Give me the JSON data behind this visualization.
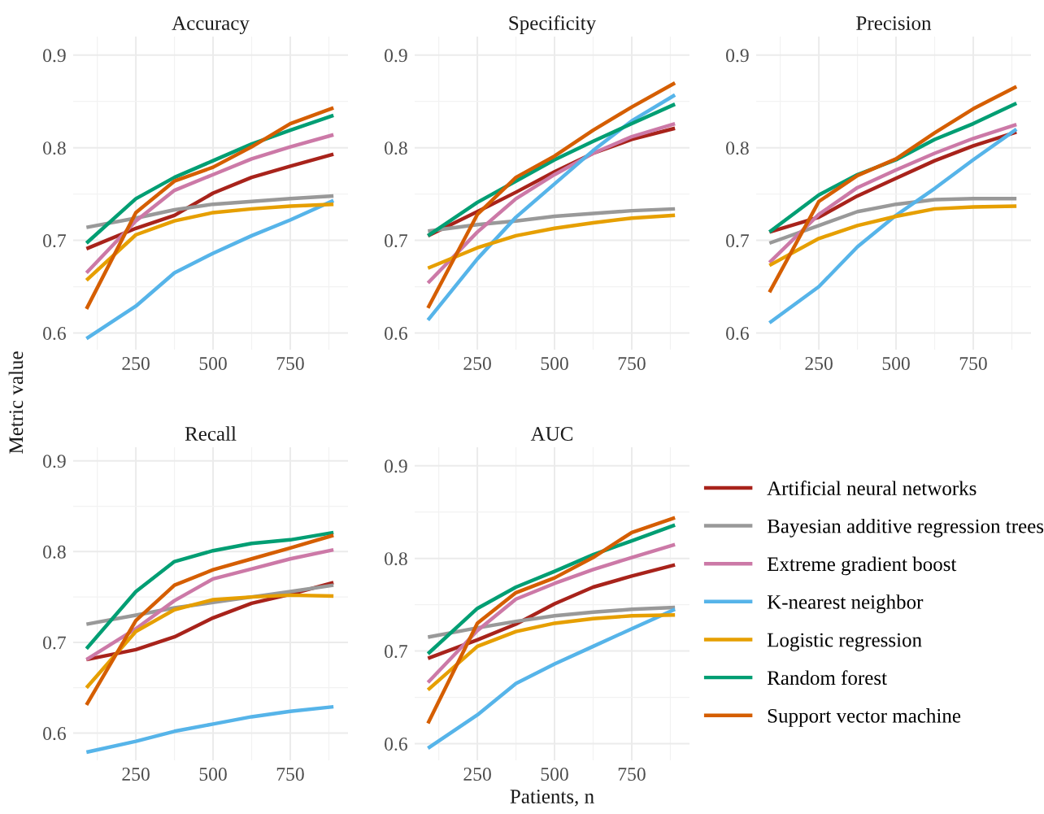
{
  "chart_data": [
    {
      "type": "line",
      "title": "Accuracy",
      "x": [
        90,
        250,
        375,
        500,
        625,
        750,
        890
      ],
      "xlim": [
        47,
        937
      ],
      "xticks": [
        250,
        500,
        750
      ],
      "ylim": [
        0.582,
        0.92
      ],
      "yticks": [
        0.6,
        0.7,
        0.8,
        0.9
      ],
      "grid": true,
      "legend": false,
      "line_style": "solid",
      "marker": "none",
      "series": [
        {
          "color": "#a8231b",
          "values": [
            0.691,
            0.713,
            0.727,
            0.751,
            0.768,
            0.78,
            0.793
          ]
        },
        {
          "color": "#999999",
          "values": [
            0.714,
            0.724,
            0.733,
            0.739,
            0.742,
            0.745,
            0.748
          ]
        },
        {
          "color": "#cc79a7",
          "values": [
            0.665,
            0.721,
            0.754,
            0.771,
            0.788,
            0.801,
            0.814
          ]
        },
        {
          "color": "#56b4e9",
          "values": [
            0.594,
            0.629,
            0.665,
            0.686,
            0.705,
            0.722,
            0.743
          ]
        },
        {
          "color": "#e69f00",
          "values": [
            0.657,
            0.706,
            0.721,
            0.73,
            0.734,
            0.737,
            0.739
          ]
        },
        {
          "color": "#009e73",
          "values": [
            0.697,
            0.745,
            0.768,
            0.786,
            0.804,
            0.819,
            0.835
          ]
        },
        {
          "color": "#d55e00",
          "values": [
            0.626,
            0.73,
            0.764,
            0.779,
            0.801,
            0.826,
            0.843
          ]
        }
      ]
    },
    {
      "type": "line",
      "title": "Specificity",
      "x": [
        90,
        250,
        375,
        500,
        625,
        750,
        890
      ],
      "xlim": [
        47,
        937
      ],
      "xticks": [
        250,
        500,
        750
      ],
      "ylim": [
        0.582,
        0.92
      ],
      "yticks": [
        0.6,
        0.7,
        0.8,
        0.9
      ],
      "grid": true,
      "legend": false,
      "line_style": "solid",
      "marker": "none",
      "series": [
        {
          "color": "#a8231b",
          "values": [
            0.705,
            0.731,
            0.752,
            0.774,
            0.794,
            0.809,
            0.821
          ]
        },
        {
          "color": "#999999",
          "values": [
            0.71,
            0.717,
            0.721,
            0.726,
            0.729,
            0.732,
            0.734
          ]
        },
        {
          "color": "#cc79a7",
          "values": [
            0.654,
            0.709,
            0.745,
            0.771,
            0.794,
            0.812,
            0.826
          ]
        },
        {
          "color": "#56b4e9",
          "values": [
            0.614,
            0.68,
            0.725,
            0.761,
            0.797,
            0.829,
            0.857
          ]
        },
        {
          "color": "#e69f00",
          "values": [
            0.67,
            0.692,
            0.705,
            0.713,
            0.719,
            0.724,
            0.727
          ]
        },
        {
          "color": "#009e73",
          "values": [
            0.705,
            0.741,
            0.764,
            0.787,
            0.807,
            0.826,
            0.847
          ]
        },
        {
          "color": "#d55e00",
          "values": [
            0.627,
            0.728,
            0.768,
            0.791,
            0.819,
            0.844,
            0.87
          ]
        }
      ]
    },
    {
      "type": "line",
      "title": "Precision",
      "x": [
        90,
        250,
        375,
        500,
        625,
        750,
        890
      ],
      "xlim": [
        47,
        937
      ],
      "xticks": [
        250,
        500,
        750
      ],
      "ylim": [
        0.582,
        0.92
      ],
      "yticks": [
        0.6,
        0.7,
        0.8,
        0.9
      ],
      "grid": true,
      "legend": false,
      "line_style": "solid",
      "marker": "none",
      "series": [
        {
          "color": "#a8231b",
          "values": [
            0.709,
            0.725,
            0.748,
            0.767,
            0.786,
            0.802,
            0.817
          ]
        },
        {
          "color": "#999999",
          "values": [
            0.697,
            0.716,
            0.731,
            0.739,
            0.744,
            0.745,
            0.745
          ]
        },
        {
          "color": "#cc79a7",
          "values": [
            0.676,
            0.728,
            0.757,
            0.776,
            0.794,
            0.81,
            0.825
          ]
        },
        {
          "color": "#56b4e9",
          "values": [
            0.611,
            0.65,
            0.693,
            0.727,
            0.756,
            0.787,
            0.82
          ]
        },
        {
          "color": "#e69f00",
          "values": [
            0.673,
            0.702,
            0.716,
            0.726,
            0.734,
            0.736,
            0.737
          ]
        },
        {
          "color": "#009e73",
          "values": [
            0.709,
            0.749,
            0.771,
            0.787,
            0.809,
            0.826,
            0.848
          ]
        },
        {
          "color": "#d55e00",
          "values": [
            0.644,
            0.742,
            0.77,
            0.788,
            0.816,
            0.842,
            0.866
          ]
        }
      ]
    },
    {
      "type": "line",
      "title": "Recall",
      "ylabel": "Metric value",
      "x": [
        90,
        250,
        375,
        500,
        625,
        750,
        890
      ],
      "xlim": [
        47,
        937
      ],
      "xticks": [
        250,
        500,
        750
      ],
      "ylim": [
        0.57,
        0.915
      ],
      "yticks": [
        0.6,
        0.7,
        0.8,
        0.9
      ],
      "grid": true,
      "legend": false,
      "line_style": "solid",
      "marker": "none",
      "series": [
        {
          "color": "#a8231b",
          "values": [
            0.681,
            0.692,
            0.706,
            0.727,
            0.743,
            0.753,
            0.766
          ]
        },
        {
          "color": "#999999",
          "values": [
            0.72,
            0.73,
            0.738,
            0.744,
            0.75,
            0.756,
            0.763
          ]
        },
        {
          "color": "#cc79a7",
          "values": [
            0.681,
            0.715,
            0.746,
            0.77,
            0.781,
            0.792,
            0.802
          ]
        },
        {
          "color": "#56b4e9",
          "values": [
            0.579,
            0.591,
            0.602,
            0.61,
            0.618,
            0.624,
            0.629
          ]
        },
        {
          "color": "#e69f00",
          "values": [
            0.65,
            0.712,
            0.736,
            0.747,
            0.75,
            0.752,
            0.751
          ]
        },
        {
          "color": "#009e73",
          "values": [
            0.693,
            0.756,
            0.789,
            0.801,
            0.809,
            0.813,
            0.821
          ]
        },
        {
          "color": "#d55e00",
          "values": [
            0.631,
            0.724,
            0.763,
            0.78,
            0.792,
            0.804,
            0.818
          ]
        }
      ]
    },
    {
      "type": "line",
      "title": "AUC",
      "xlabel": "Patients, n",
      "x": [
        90,
        250,
        375,
        500,
        625,
        750,
        890
      ],
      "xlim": [
        47,
        937
      ],
      "xticks": [
        250,
        500,
        750
      ],
      "ylim": [
        0.582,
        0.92
      ],
      "yticks": [
        0.6,
        0.7,
        0.8,
        0.9
      ],
      "grid": true,
      "legend": "right",
      "line_style": "solid",
      "marker": "none",
      "series": [
        {
          "name": "Artificial neural networks",
          "color": "#a8231b",
          "values": [
            0.692,
            0.712,
            0.729,
            0.751,
            0.769,
            0.781,
            0.793
          ]
        },
        {
          "name": "Bayesian additive regression trees",
          "color": "#999999",
          "values": [
            0.715,
            0.725,
            0.732,
            0.738,
            0.742,
            0.745,
            0.747
          ]
        },
        {
          "name": "Extreme gradient boost",
          "color": "#cc79a7",
          "values": [
            0.666,
            0.722,
            0.756,
            0.773,
            0.788,
            0.801,
            0.815
          ]
        },
        {
          "name": "K-nearest neighbor",
          "color": "#56b4e9",
          "values": [
            0.595,
            0.631,
            0.665,
            0.686,
            0.705,
            0.724,
            0.745
          ]
        },
        {
          "name": "Logistic regression",
          "color": "#e69f00",
          "values": [
            0.658,
            0.705,
            0.721,
            0.73,
            0.735,
            0.738,
            0.739
          ]
        },
        {
          "name": "Random forest",
          "color": "#009e73",
          "values": [
            0.697,
            0.746,
            0.769,
            0.786,
            0.804,
            0.819,
            0.836
          ]
        },
        {
          "name": "Support vector machine",
          "color": "#d55e00",
          "values": [
            0.622,
            0.73,
            0.763,
            0.779,
            0.801,
            0.828,
            0.844
          ]
        }
      ]
    }
  ]
}
